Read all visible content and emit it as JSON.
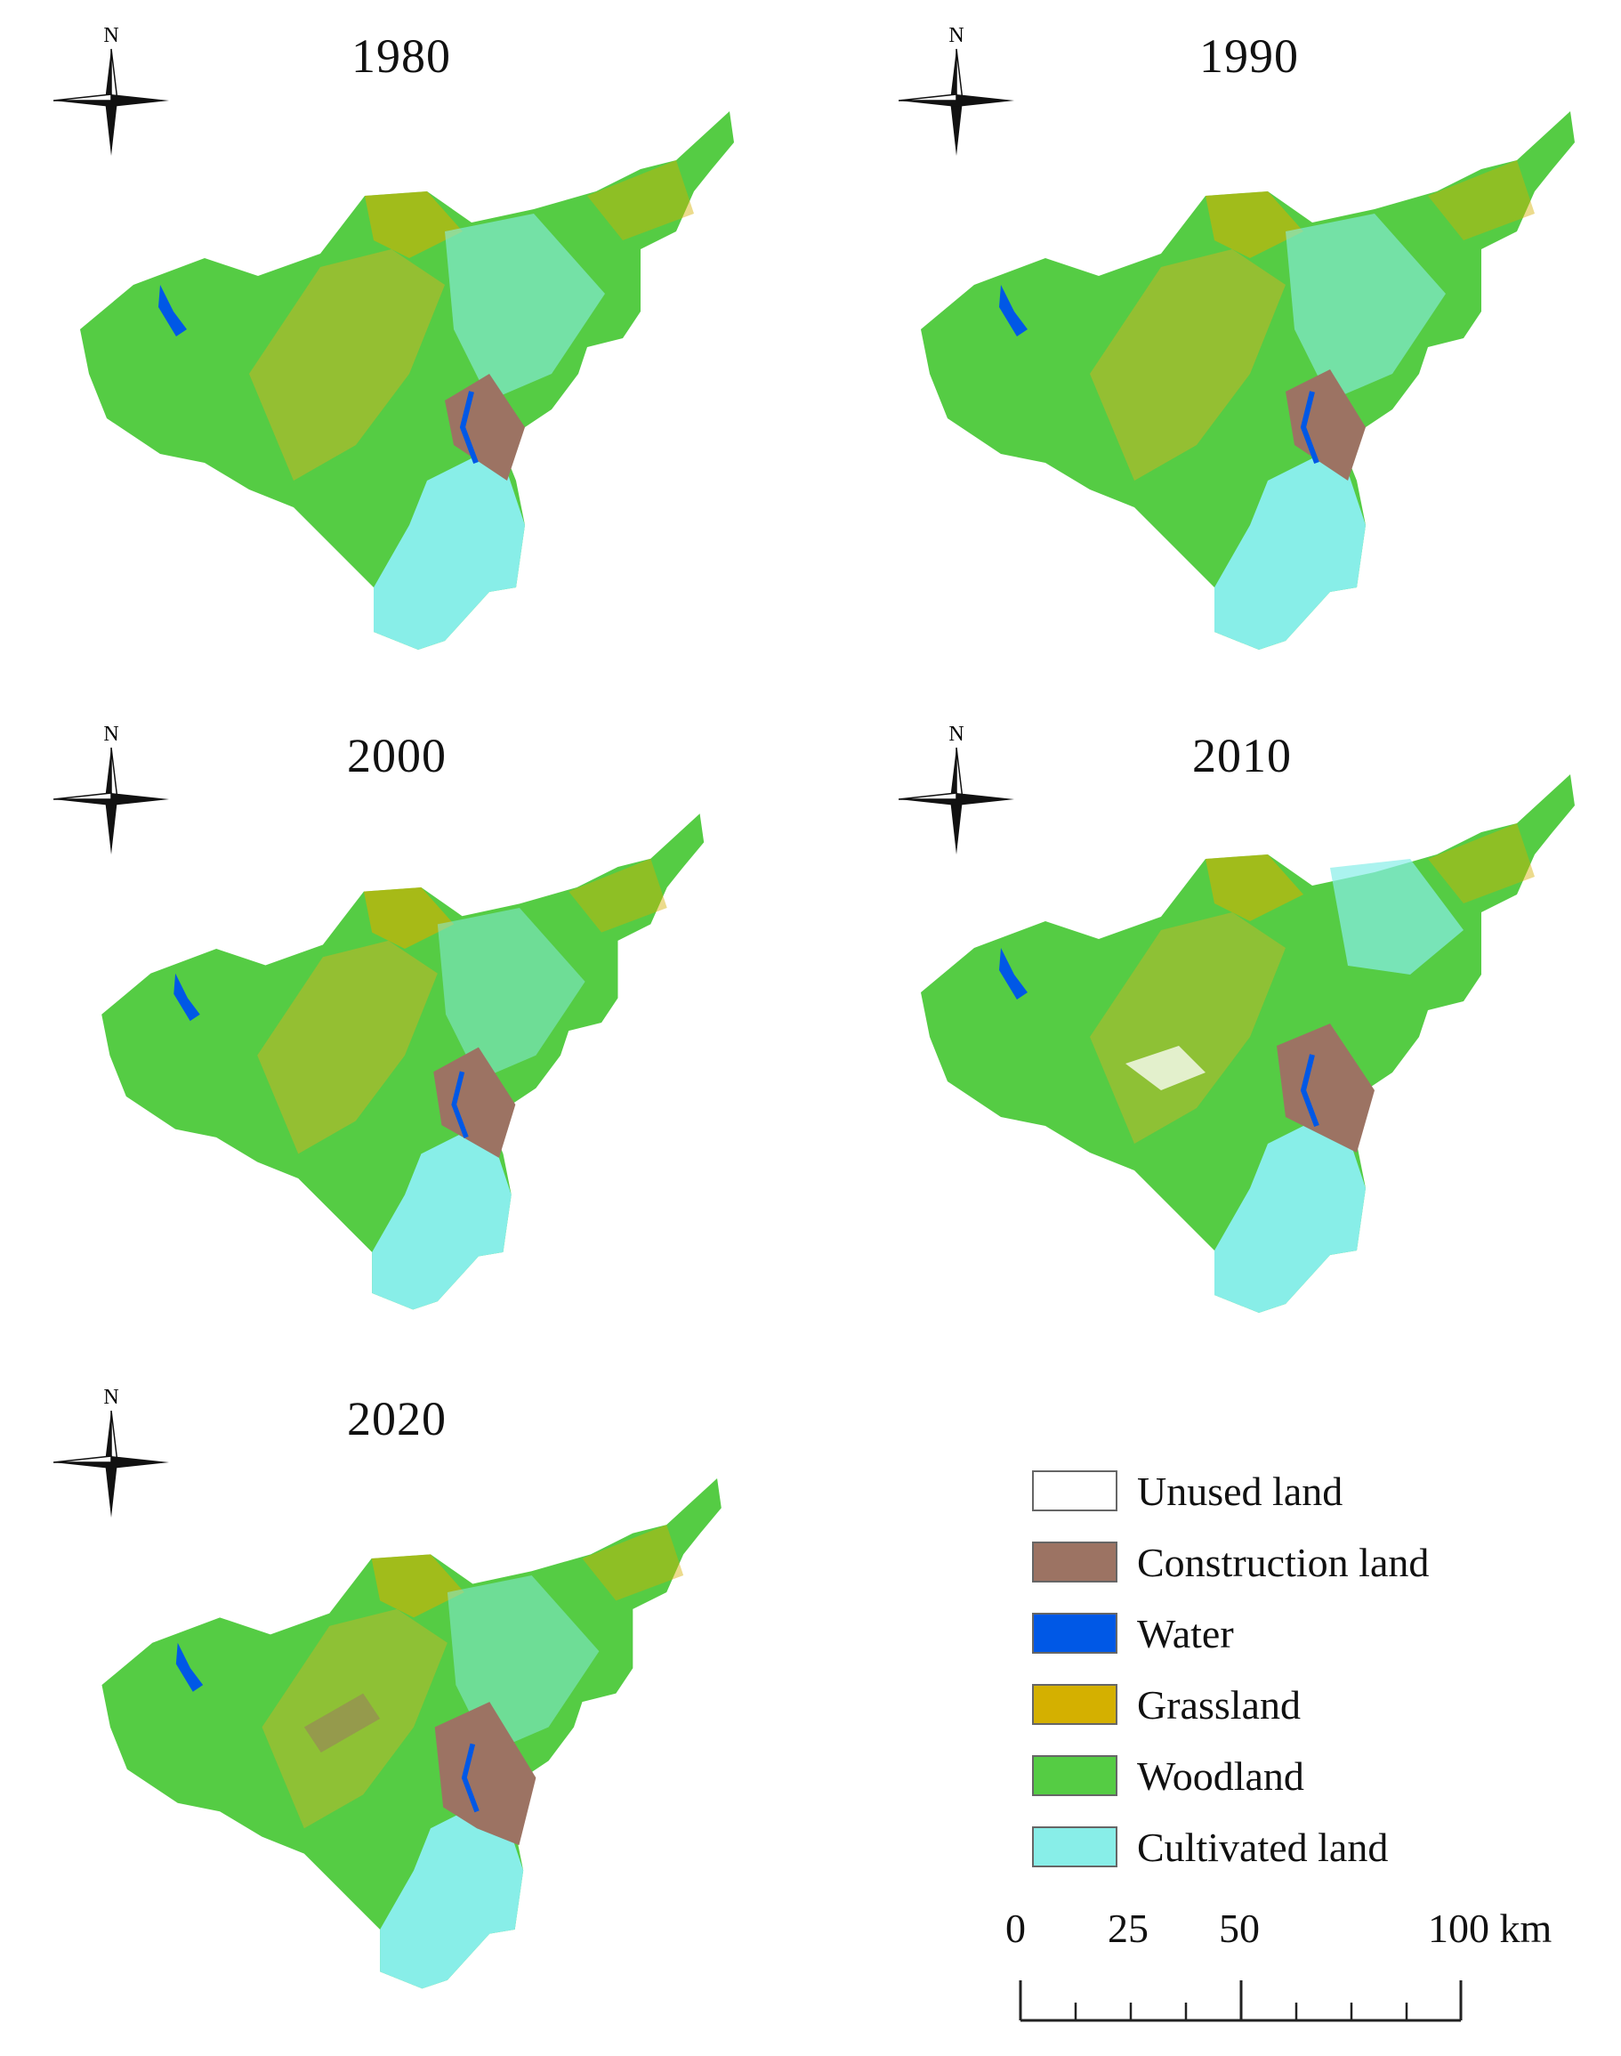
{
  "panels": [
    {
      "year": "1980",
      "north": "N"
    },
    {
      "year": "1990",
      "north": "N"
    },
    {
      "year": "2000",
      "north": "N"
    },
    {
      "year": "2010",
      "north": "N"
    },
    {
      "year": "2020",
      "north": "N"
    }
  ],
  "legend": [
    {
      "label": "Unused land",
      "color": "#ffffff"
    },
    {
      "label": "Construction land",
      "color": "#9c7363"
    },
    {
      "label": "Water",
      "color": "#0058e6"
    },
    {
      "label": "Grassland",
      "color": "#d4b000"
    },
    {
      "label": "Woodland",
      "color": "#55cc44"
    },
    {
      "label": "Cultivated land",
      "color": "#88eee8"
    }
  ],
  "scale": {
    "labels": [
      "0",
      "25",
      "50",
      "100 km"
    ]
  }
}
